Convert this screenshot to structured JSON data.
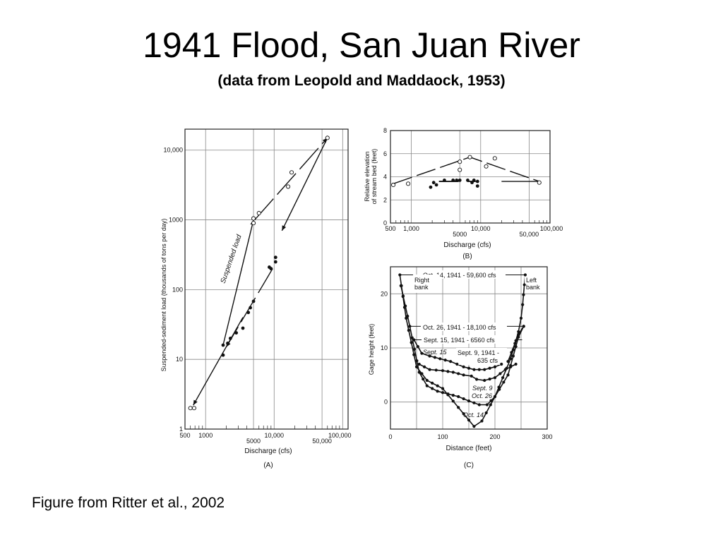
{
  "slide": {
    "title": "1941 Flood, San Juan River",
    "subtitle": "(data from Leopold and Maddaock, 1953)",
    "caption": "Figure from Ritter et al., 2002"
  },
  "chart_data": [
    {
      "panel": "(A)",
      "type": "scatter",
      "xscale": "log",
      "yscale": "log",
      "xlabel": "Discharge (cfs)",
      "ylabel": "Suspended-sediment load (thousands of tons per day)",
      "x_ticks_top": [
        "500",
        "1000",
        "10,000",
        "100,000"
      ],
      "x_ticks_bottom": [
        "5000",
        "50,000"
      ],
      "y_ticks": [
        "1",
        "10",
        "100",
        "1000",
        "10,000"
      ],
      "xlim": [
        500,
        120000
      ],
      "ylim": [
        1,
        20000
      ],
      "annotation": "Suspended load",
      "series": [
        {
          "marker": "open",
          "points": [
            [
              600,
              2
            ],
            [
              680,
              2
            ],
            [
              5000,
              900
            ],
            [
              5000,
              1050
            ],
            [
              6000,
              1250
            ],
            [
              16000,
              3000
            ],
            [
              18000,
              4800
            ],
            [
              60000,
              15000
            ]
          ]
        },
        {
          "marker": "filled",
          "points": [
            [
              1800,
              11.5
            ],
            [
              1800,
              16
            ],
            [
              2100,
              17
            ],
            [
              2300,
              20
            ],
            [
              2800,
              24
            ],
            [
              3500,
              28
            ],
            [
              4200,
              47
            ],
            [
              4500,
              55
            ],
            [
              5000,
              68
            ],
            [
              8500,
              210
            ],
            [
              9000,
              200
            ],
            [
              10500,
              250
            ],
            [
              10500,
              290
            ]
          ]
        }
      ]
    },
    {
      "panel": "(B)",
      "type": "scatter",
      "xscale": "log",
      "xlabel": "Discharge (cfs)",
      "ylabel": "Relative elevation of stream bed (feet)",
      "x_ticks_top": [
        "500",
        "1,000",
        "10,000",
        "100,000"
      ],
      "x_ticks_bottom": [
        "5000",
        "50,000"
      ],
      "y_ticks": [
        "0",
        "2",
        "4",
        "6",
        "8"
      ],
      "xlim": [
        500,
        100000
      ],
      "ylim": [
        0,
        8
      ],
      "series": [
        {
          "marker": "open",
          "points": [
            [
              550,
              3.3
            ],
            [
              900,
              3.4
            ],
            [
              5000,
              4.6
            ],
            [
              5000,
              5.3
            ],
            [
              7000,
              5.7
            ],
            [
              12000,
              4.9
            ],
            [
              16000,
              5.6
            ],
            [
              70000,
              3.5
            ]
          ]
        },
        {
          "marker": "filled",
          "points": [
            [
              1900,
              3.1
            ],
            [
              2100,
              3.5
            ],
            [
              2300,
              3.3
            ],
            [
              3000,
              3.7
            ],
            [
              4000,
              3.7
            ],
            [
              4500,
              3.7
            ],
            [
              5000,
              3.7
            ],
            [
              6500,
              3.7
            ],
            [
              7500,
              3.5
            ],
            [
              8000,
              3.7
            ],
            [
              9000,
              3.2
            ],
            [
              9000,
              3.6
            ]
          ]
        }
      ]
    },
    {
      "panel": "(C)",
      "type": "line",
      "xlabel": "Distance (feet)",
      "ylabel": "Gage height (feet)",
      "x_ticks": [
        "0",
        "100",
        "200",
        "300"
      ],
      "y_ticks": [
        "0",
        "10",
        "20"
      ],
      "xlim": [
        0,
        300
      ],
      "ylim": [
        -5,
        25
      ],
      "labels": {
        "right_bank": "Right bank",
        "left_bank": "Left bank",
        "oct14_flow": "Oct. 14, 1941 - 59,600 cfs",
        "oct26_flow": "Oct. 26, 1941 - 18,100 cfs",
        "sept15_flow": "Sept. 15, 1941 - 6560 cfs",
        "sept9_flow": "Sept. 9, 1941 - 635 cfs",
        "sept15_bed": "Sept. 15",
        "sept9_bed": "Sept. 9",
        "oct26_bed": "Oct. 26",
        "oct14_bed": "Oct. 14"
      },
      "series": [
        {
          "name": "Oct. 14",
          "points": [
            [
              18,
              23.5
            ],
            [
              30,
              15.5
            ],
            [
              50,
              6.5
            ],
            [
              70,
              4
            ],
            [
              100,
              2.5
            ],
            [
              130,
              -1
            ],
            [
              160,
              -4.5
            ],
            [
              175,
              -3.5
            ],
            [
              200,
              1
            ],
            [
              230,
              8
            ],
            [
              245,
              13
            ],
            [
              250,
              15.5
            ],
            [
              253,
              18
            ],
            [
              258,
              23.5
            ]
          ]
        },
        {
          "name": "Oct. 26",
          "points": [
            [
              20,
              21.5
            ],
            [
              37,
              14
            ],
            [
              55,
              5.5
            ],
            [
              70,
              3
            ],
            [
              90,
              2
            ],
            [
              110,
              1.5
            ],
            [
              130,
              1
            ],
            [
              150,
              0.2
            ],
            [
              170,
              -0.5
            ],
            [
              185,
              -0.5
            ],
            [
              200,
              1
            ],
            [
              225,
              5
            ],
            [
              245,
              12
            ],
            [
              255,
              14
            ]
          ]
        },
        {
          "name": "Sept. 15",
          "points": [
            [
              45,
              11.5
            ],
            [
              60,
              9
            ],
            [
              75,
              8.5
            ],
            [
              95,
              8
            ],
            [
              115,
              7.5
            ],
            [
              140,
              6.5
            ],
            [
              160,
              6
            ],
            [
              180,
              6
            ],
            [
              200,
              6.5
            ],
            [
              225,
              7.5
            ],
            [
              245,
              12.5
            ],
            [
              255,
              14
            ]
          ]
        },
        {
          "name": "Sept. 9",
          "points": [
            [
              55,
              7
            ],
            [
              75,
              6
            ],
            [
              100,
              5.8
            ],
            [
              120,
              5.5
            ],
            [
              140,
              5
            ],
            [
              155,
              4.8
            ],
            [
              165,
              4.2
            ],
            [
              180,
              4
            ],
            [
              200,
              4.5
            ],
            [
              220,
              6
            ],
            [
              240,
              7
            ]
          ]
        }
      ]
    }
  ]
}
